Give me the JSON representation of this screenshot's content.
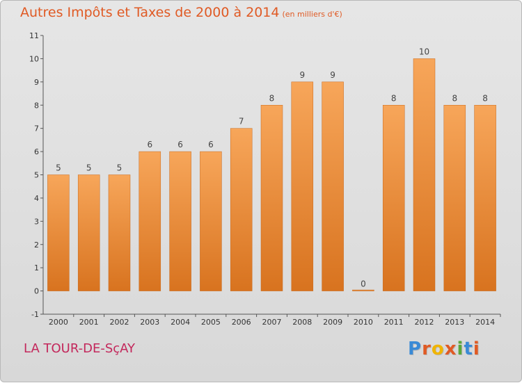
{
  "title": "Autres Impôts et Taxes de 2000 à 2014",
  "unit_label": "(en milliers d'€)",
  "commune": "LA TOUR-DE-SçAY",
  "logo_text": "Proxiti",
  "colors": {
    "title": "#e05a24",
    "commune": "#c3275b",
    "bar_top": "#f7a65a",
    "bar_bottom": "#d8731f",
    "logo": [
      "#3a8ad6",
      "#e05a24",
      "#f0b400",
      "#e05a24",
      "#5aa83a",
      "#3a8ad6",
      "#e05a24"
    ]
  },
  "chart_data": {
    "type": "bar",
    "categories": [
      "2000",
      "2001",
      "2002",
      "2003",
      "2004",
      "2005",
      "2006",
      "2007",
      "2008",
      "2009",
      "2010",
      "2011",
      "2012",
      "2013",
      "2014"
    ],
    "values": [
      5,
      5,
      5,
      6,
      6,
      6,
      7,
      8,
      9,
      9,
      0,
      8,
      10,
      8,
      8
    ],
    "ylim": [
      -1,
      11
    ],
    "yticks": [
      -1,
      0,
      1,
      2,
      3,
      4,
      5,
      6,
      7,
      8,
      9,
      10,
      11
    ],
    "grid": false
  }
}
